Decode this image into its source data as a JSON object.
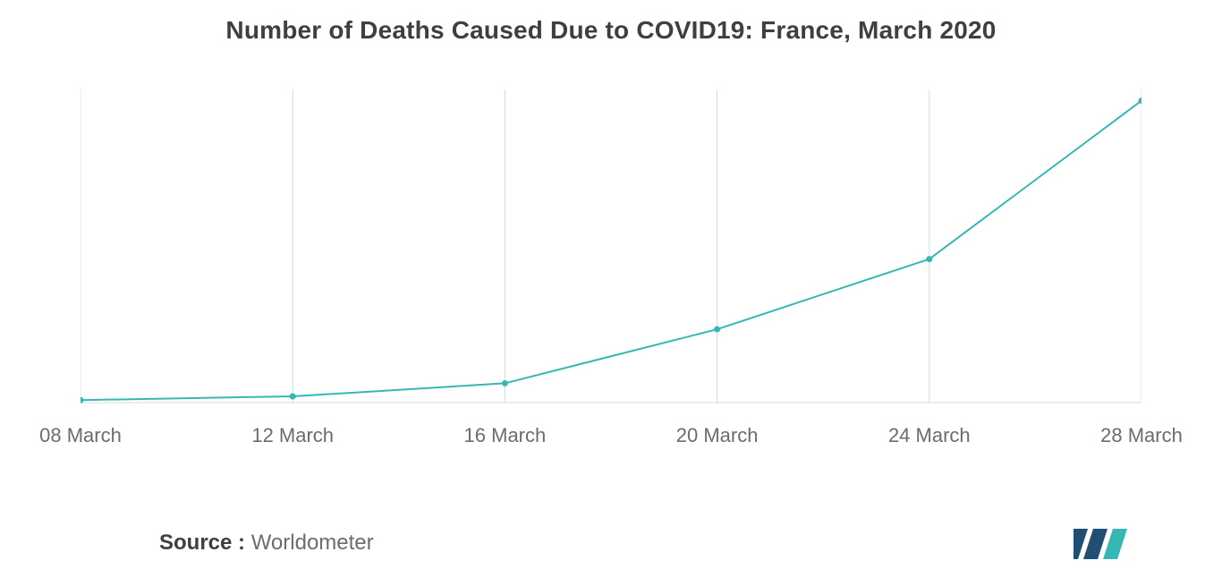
{
  "title": "Number of Deaths Caused Due to COVID19: France, March 2020",
  "chart": {
    "type": "line",
    "x_categories": [
      "08 March",
      "12 March",
      "16 March",
      "20 March",
      "24 March",
      "28 March"
    ],
    "values": [
      19,
      48,
      148,
      562,
      1100,
      2314
    ],
    "ylim": [
      0,
      2400
    ],
    "line_color": "#36b7b4",
    "line_width": 2,
    "marker_radius": 3.5,
    "marker_fill": "#36b7b4",
    "grid_color": "#d9d9d9",
    "grid_width": 1,
    "background_color": "#ffffff",
    "axis_baseline_color": "#d9d9d9",
    "x_label_fontsize": 22,
    "x_label_color": "#6c6c6c",
    "title_fontsize": 28,
    "title_color": "#3f3f3f"
  },
  "source": {
    "label": "Source :",
    "text": "Worldometer"
  },
  "logo": {
    "bar1_color": "#204f73",
    "bar2_color": "#36b7b4"
  }
}
